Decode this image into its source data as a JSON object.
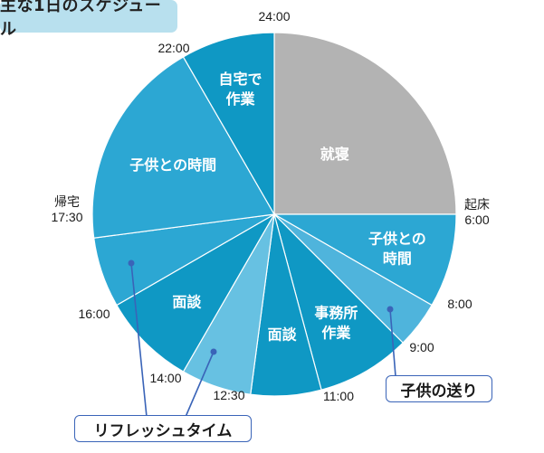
{
  "title": "主な1日のスケジュール",
  "colors": {
    "sleep": "#b3b3b3",
    "dark_blue": "#0f98c4",
    "mid_blue": "#2ca7d3",
    "light_blue": "#4fb4dc",
    "pale_blue": "#67c1e2",
    "divider": "#ffffff",
    "callout_line": "#3a64b8"
  },
  "chart_data": {
    "type": "pie",
    "unit": "hours",
    "start_time": "24:00",
    "direction": "clockwise",
    "slices": [
      {
        "label": "就寝",
        "start": "24:00",
        "end": "6:00",
        "hours": 6,
        "color": "#b3b3b3"
      },
      {
        "label": "子供との時間",
        "start": "6:00",
        "end": "8:00",
        "hours": 2,
        "color": "#2ca7d3"
      },
      {
        "label": "",
        "start": "8:00",
        "end": "9:00",
        "hours": 1,
        "color": "#4fb4dc"
      },
      {
        "label": "事務所作業",
        "start": "9:00",
        "end": "11:00",
        "hours": 2,
        "color": "#0f98c4"
      },
      {
        "label": "面談",
        "start": "11:00",
        "end": "12:30",
        "hours": 1.5,
        "color": "#0f98c4"
      },
      {
        "label": "",
        "start": "12:30",
        "end": "14:00",
        "hours": 1.5,
        "color": "#67c1e2"
      },
      {
        "label": "面談",
        "start": "14:00",
        "end": "16:00",
        "hours": 2,
        "color": "#0f98c4"
      },
      {
        "label": "",
        "start": "16:00",
        "end": "17:30",
        "hours": 1.5,
        "color": "#2ca7d3"
      },
      {
        "label": "子供との時間",
        "start": "17:30",
        "end": "22:00",
        "hours": 4.5,
        "color": "#2ca7d3"
      },
      {
        "label": "自宅で作業",
        "start": "22:00",
        "end": "24:00",
        "hours": 2,
        "color": "#0f98c4"
      }
    ],
    "boundary_labels": [
      {
        "text": "24:00",
        "hour": 24
      },
      {
        "text": "起床",
        "hour": 6
      },
      {
        "text": "6:00",
        "hour": 6
      },
      {
        "text": "8:00",
        "hour": 8
      },
      {
        "text": "9:00",
        "hour": 9
      },
      {
        "text": "11:00",
        "hour": 11
      },
      {
        "text": "12:30",
        "hour": 12.5
      },
      {
        "text": "14:00",
        "hour": 14
      },
      {
        "text": "16:00",
        "hour": 16
      },
      {
        "text": "帰宅",
        "hour": 17.5
      },
      {
        "text": "17:30",
        "hour": 17.5
      },
      {
        "text": "22:00",
        "hour": 22
      }
    ],
    "callouts": [
      {
        "text": "リフレッシュタイム",
        "slices": [
          "16:00-17:30",
          "12:30-14:00"
        ]
      },
      {
        "text": "子供の送り",
        "slices": [
          "8:00-9:00"
        ]
      }
    ]
  }
}
